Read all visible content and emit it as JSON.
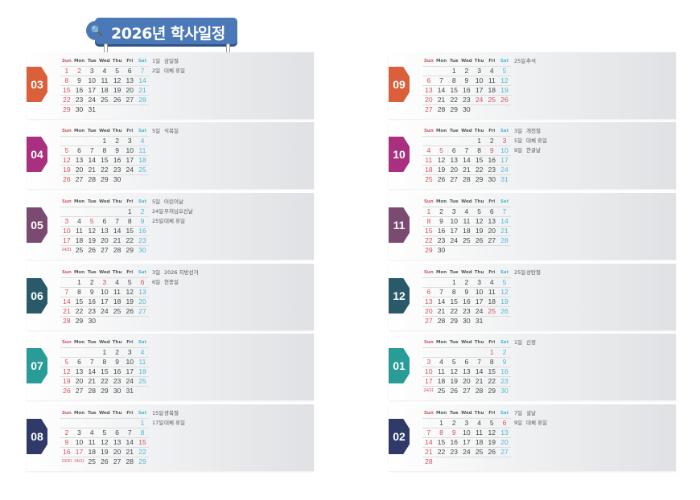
{
  "title": "2026년 학사일정",
  "title_icon": "search-icon",
  "weekday_headers": [
    "Sun",
    "Mon",
    "Tue",
    "Wed",
    "Thu",
    "Fri",
    "Sat"
  ],
  "colors": {
    "sunday_holiday": "#d4505f",
    "saturday": "#4fb8d4",
    "banner": "#4b78b6"
  },
  "months": [
    {
      "label": "03",
      "color": "#d9603a",
      "weeks": [
        [
          "1",
          "2",
          "3",
          "4",
          "5",
          "6",
          "7"
        ],
        [
          "8",
          "9",
          "10",
          "11",
          "12",
          "13",
          "14"
        ],
        [
          "15",
          "16",
          "17",
          "18",
          "19",
          "20",
          "21"
        ],
        [
          "22",
          "23",
          "24",
          "25",
          "26",
          "27",
          "28"
        ],
        [
          "29",
          "30",
          "31",
          "",
          "",
          "",
          ""
        ]
      ],
      "red": [
        "2"
      ],
      "holidays": [
        {
          "day": "1일",
          "name": "삼일절"
        },
        {
          "day": "2일",
          "name": "대체 휴일"
        }
      ]
    },
    {
      "label": "04",
      "color": "#a8307f",
      "weeks": [
        [
          "",
          "",
          "",
          "1",
          "2",
          "3",
          "4"
        ],
        [
          "5",
          "6",
          "7",
          "8",
          "9",
          "10",
          "11"
        ],
        [
          "12",
          "13",
          "14",
          "15",
          "16",
          "17",
          "18"
        ],
        [
          "19",
          "20",
          "21",
          "22",
          "23",
          "24",
          "25"
        ],
        [
          "26",
          "27",
          "28",
          "29",
          "30",
          "",
          ""
        ]
      ],
      "red": [],
      "holidays": [
        {
          "day": "5일",
          "name": "식목일"
        }
      ]
    },
    {
      "label": "05",
      "color": "#7b4a70",
      "weeks": [
        [
          "",
          "",
          "",
          "",
          "",
          "1",
          "2"
        ],
        [
          "3",
          "4",
          "5",
          "6",
          "7",
          "8",
          "9"
        ],
        [
          "10",
          "11",
          "12",
          "13",
          "14",
          "15",
          "16"
        ],
        [
          "17",
          "18",
          "19",
          "20",
          "21",
          "22",
          "23"
        ],
        [
          "24/31",
          "25",
          "26",
          "27",
          "28",
          "29",
          "30"
        ]
      ],
      "red": [
        "5"
      ],
      "holidays": [
        {
          "day": "5일",
          "name": "어린이날"
        },
        {
          "day": "24일",
          "name": "부처님오신날"
        },
        {
          "day": "25일",
          "name": "대체 휴일"
        }
      ]
    },
    {
      "label": "06",
      "color": "#2a5a6a",
      "weeks": [
        [
          "",
          "1",
          "2",
          "3",
          "4",
          "5",
          "6"
        ],
        [
          "7",
          "8",
          "9",
          "10",
          "11",
          "12",
          "13"
        ],
        [
          "14",
          "15",
          "16",
          "17",
          "18",
          "19",
          "20"
        ],
        [
          "21",
          "22",
          "23",
          "24",
          "25",
          "26",
          "27"
        ],
        [
          "28",
          "29",
          "30",
          "",
          "",
          "",
          ""
        ]
      ],
      "red": [
        "3",
        "6"
      ],
      "holidays": [
        {
          "day": "3일",
          "name": "2026 지방선거"
        },
        {
          "day": "6일",
          "name": "현충일"
        }
      ]
    },
    {
      "label": "07",
      "color": "#2a9c97",
      "weeks": [
        [
          "",
          "",
          "",
          "1",
          "2",
          "3",
          "4"
        ],
        [
          "5",
          "6",
          "7",
          "8",
          "9",
          "10",
          "11"
        ],
        [
          "12",
          "13",
          "14",
          "15",
          "16",
          "17",
          "18"
        ],
        [
          "19",
          "20",
          "21",
          "22",
          "23",
          "24",
          "25"
        ],
        [
          "26",
          "27",
          "28",
          "29",
          "30",
          "31",
          ""
        ]
      ],
      "red": [],
      "holidays": []
    },
    {
      "label": "08",
      "color": "#2f3a68",
      "weeks": [
        [
          "",
          "",
          "",
          "",
          "",
          "",
          "1"
        ],
        [
          "2",
          "3",
          "4",
          "5",
          "6",
          "7",
          "8"
        ],
        [
          "9",
          "10",
          "11",
          "12",
          "13",
          "14",
          "15"
        ],
        [
          "16",
          "17",
          "18",
          "19",
          "20",
          "21",
          "22"
        ],
        [
          "23/30",
          "24/31",
          "25",
          "26",
          "27",
          "28",
          "29"
        ]
      ],
      "red": [
        "15",
        "17",
        "24/31"
      ],
      "holidays": [
        {
          "day": "15일",
          "name": "광복절"
        },
        {
          "day": "17일",
          "name": "대체 휴일"
        }
      ]
    },
    {
      "label": "09",
      "color": "#d9603a",
      "weeks": [
        [
          "",
          "",
          "1",
          "2",
          "3",
          "4",
          "5"
        ],
        [
          "6",
          "7",
          "8",
          "9",
          "10",
          "11",
          "12"
        ],
        [
          "13",
          "14",
          "15",
          "16",
          "17",
          "18",
          "19"
        ],
        [
          "20",
          "21",
          "22",
          "23",
          "24",
          "25",
          "26"
        ],
        [
          "27",
          "28",
          "29",
          "30",
          "",
          "",
          ""
        ]
      ],
      "red": [
        "24",
        "25",
        "26"
      ],
      "holidays": [
        {
          "day": "25일",
          "name": "추석"
        }
      ]
    },
    {
      "label": "10",
      "color": "#a8307f",
      "weeks": [
        [
          "",
          "",
          "",
          "",
          "1",
          "2",
          "3"
        ],
        [
          "4",
          "5",
          "6",
          "7",
          "8",
          "9",
          "10"
        ],
        [
          "11",
          "12",
          "13",
          "14",
          "15",
          "16",
          "17"
        ],
        [
          "18",
          "19",
          "20",
          "21",
          "22",
          "23",
          "24"
        ],
        [
          "25",
          "26",
          "27",
          "28",
          "29",
          "30",
          "31"
        ]
      ],
      "red": [
        "3",
        "5",
        "9"
      ],
      "holidays": [
        {
          "day": "3일",
          "name": "개천절"
        },
        {
          "day": "5일",
          "name": "대체 휴일"
        },
        {
          "day": "9일",
          "name": "한글날"
        }
      ]
    },
    {
      "label": "11",
      "color": "#7b4a70",
      "weeks": [
        [
          "1",
          "2",
          "3",
          "4",
          "5",
          "6",
          "7"
        ],
        [
          "8",
          "9",
          "10",
          "11",
          "12",
          "13",
          "14"
        ],
        [
          "15",
          "16",
          "17",
          "18",
          "19",
          "20",
          "21"
        ],
        [
          "22",
          "23",
          "24",
          "25",
          "26",
          "27",
          "28"
        ],
        [
          "29",
          "30",
          "",
          "",
          "",
          "",
          ""
        ]
      ],
      "red": [],
      "holidays": []
    },
    {
      "label": "12",
      "color": "#2a5a6a",
      "weeks": [
        [
          "",
          "",
          "1",
          "2",
          "3",
          "4",
          "5"
        ],
        [
          "6",
          "7",
          "8",
          "9",
          "10",
          "11",
          "12"
        ],
        [
          "13",
          "14",
          "15",
          "16",
          "17",
          "18",
          "19"
        ],
        [
          "20",
          "21",
          "22",
          "23",
          "24",
          "25",
          "26"
        ],
        [
          "27",
          "28",
          "29",
          "30",
          "31",
          "",
          ""
        ]
      ],
      "red": [
        "25"
      ],
      "holidays": [
        {
          "day": "25일",
          "name": "성탄절"
        }
      ]
    },
    {
      "label": "01",
      "color": "#2a9c97",
      "weeks": [
        [
          "",
          "",
          "",
          "",
          "",
          "1",
          "2"
        ],
        [
          "3",
          "4",
          "5",
          "6",
          "7",
          "8",
          "9"
        ],
        [
          "10",
          "11",
          "12",
          "13",
          "14",
          "15",
          "16"
        ],
        [
          "17",
          "18",
          "19",
          "20",
          "21",
          "22",
          "23"
        ],
        [
          "24/31",
          "25",
          "26",
          "27",
          "28",
          "29",
          "30"
        ]
      ],
      "red": [
        "1"
      ],
      "holidays": [
        {
          "day": "1일",
          "name": "신정"
        }
      ]
    },
    {
      "label": "02",
      "color": "#2f3a68",
      "weeks": [
        [
          "",
          "1",
          "2",
          "3",
          "4",
          "5",
          "6"
        ],
        [
          "7",
          "8",
          "9",
          "10",
          "11",
          "12",
          "13"
        ],
        [
          "14",
          "15",
          "16",
          "17",
          "18",
          "19",
          "20"
        ],
        [
          "21",
          "22",
          "23",
          "24",
          "25",
          "26",
          "27"
        ],
        [
          "28",
          "",
          "",
          "",
          "",
          "",
          ""
        ]
      ],
      "red": [
        "6",
        "8",
        "9"
      ],
      "holidays": [
        {
          "day": "7일",
          "name": "설날"
        },
        {
          "day": "9일",
          "name": "대체 휴일"
        }
      ]
    }
  ]
}
